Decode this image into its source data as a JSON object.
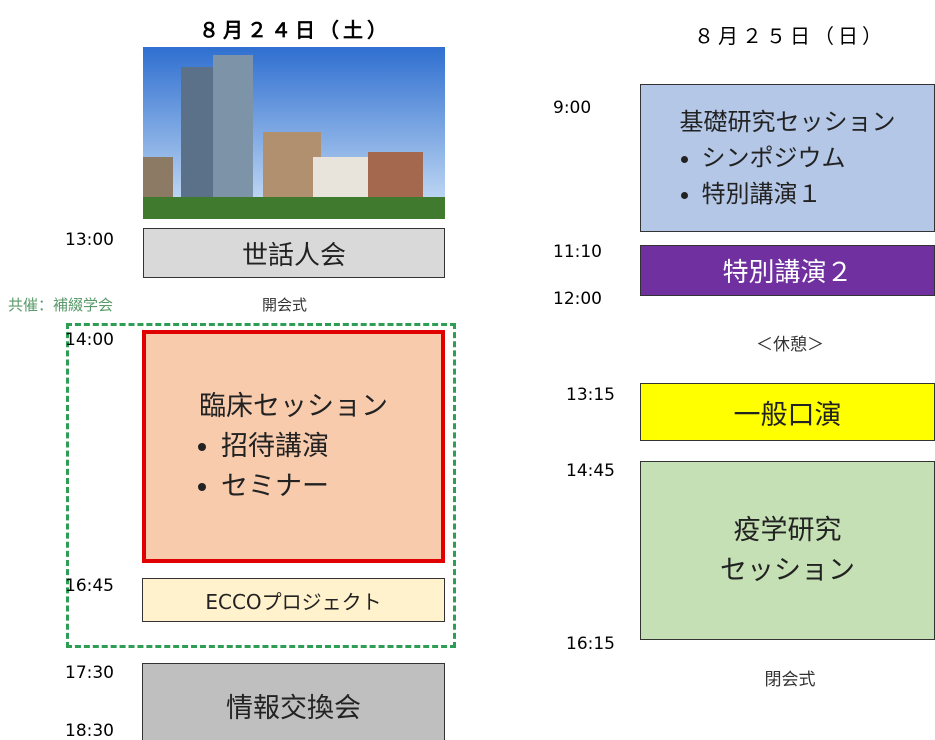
{
  "day1": {
    "title": "８月２４日（土）",
    "times": [
      "13:00",
      "14:00",
      "16:45",
      "17:30",
      "18:30"
    ],
    "sewaninkai": "世話人会",
    "sponsor": "共催：補綴学会",
    "opening": "開会式",
    "clinical": {
      "title": "臨床セッション",
      "items": [
        "招待講演",
        "セミナー"
      ]
    },
    "ecco": "ECCOプロジェクト",
    "exchange": "情報交換会"
  },
  "day2": {
    "title": "８月２５日（日）",
    "times": [
      "9:00",
      "11:10",
      "12:00",
      "13:15",
      "14:45",
      "16:15"
    ],
    "basic": {
      "title": "基礎研究セッション",
      "items": [
        "シンポジウム",
        "特別講演１"
      ]
    },
    "special": "特別講演２",
    "break": "＜休憩＞",
    "oral": "一般口演",
    "epi": {
      "lines": [
        "疫学研究",
        "セッション"
      ]
    },
    "closing": "閉会式"
  }
}
